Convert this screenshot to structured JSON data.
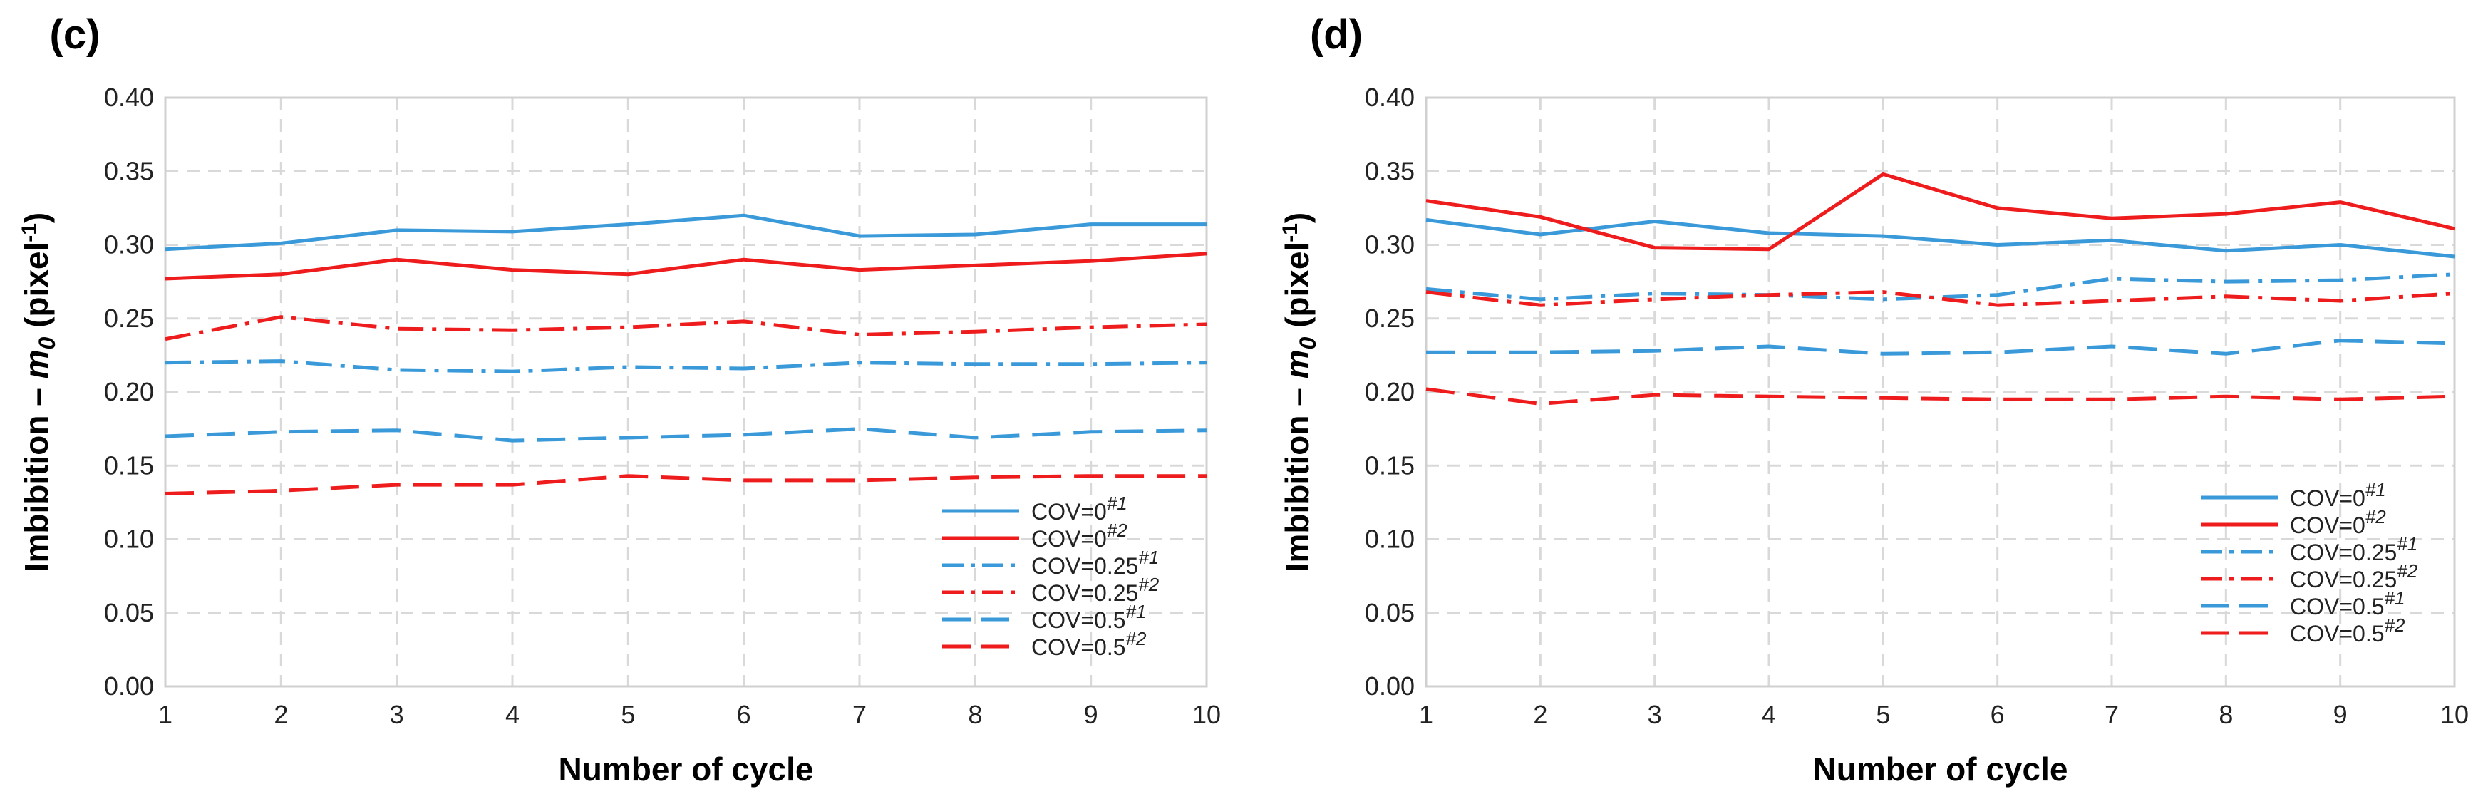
{
  "chart_data": [
    {
      "panel_label": "(c)",
      "type": "line",
      "xlabel": "Number of cycle",
      "ylabel_main": "Imbibition – ",
      "ylabel_m": "m",
      "ylabel_sub": "0",
      "ylabel_unit": " (pixel",
      "ylabel_sup": "-1",
      "ylabel_end": ")",
      "x": [
        1,
        2,
        3,
        4,
        5,
        6,
        7,
        8,
        9,
        10
      ],
      "x_ticks": [
        "1",
        "2",
        "3",
        "4",
        "5",
        "6",
        "7",
        "8",
        "9",
        "10"
      ],
      "y_ticks": [
        "0.00",
        "0.05",
        "0.10",
        "0.15",
        "0.20",
        "0.25",
        "0.30",
        "0.35",
        "0.40"
      ],
      "ylim": [
        0,
        0.4
      ],
      "xlim": [
        1,
        10
      ],
      "grid": true,
      "legend_position": "bottom-right",
      "series": [
        {
          "name": "COV=0",
          "sup": "#1",
          "color": "#3a9ad9",
          "style": "solid",
          "values": [
            0.297,
            0.301,
            0.31,
            0.309,
            0.314,
            0.32,
            0.306,
            0.307,
            0.314,
            0.314
          ]
        },
        {
          "name": "COV=0",
          "sup": "#2",
          "color": "#ee1c1c",
          "style": "solid",
          "values": [
            0.277,
            0.28,
            0.29,
            0.283,
            0.28,
            0.29,
            0.283,
            0.286,
            0.289,
            0.294
          ]
        },
        {
          "name": "COV=0.25",
          "sup": "#1",
          "color": "#3a9ad9",
          "style": "dashdot",
          "values": [
            0.22,
            0.221,
            0.215,
            0.214,
            0.217,
            0.216,
            0.22,
            0.219,
            0.219,
            0.22
          ]
        },
        {
          "name": "COV=0.25",
          "sup": "#2",
          "color": "#ee1c1c",
          "style": "dashdot",
          "values": [
            0.236,
            0.251,
            0.243,
            0.242,
            0.244,
            0.248,
            0.239,
            0.241,
            0.244,
            0.246
          ]
        },
        {
          "name": "COV=0.5",
          "sup": "#1",
          "color": "#3a9ad9",
          "style": "dash",
          "values": [
            0.17,
            0.173,
            0.174,
            0.167,
            0.169,
            0.171,
            0.175,
            0.169,
            0.173,
            0.174
          ]
        },
        {
          "name": "COV=0.5",
          "sup": "#2",
          "color": "#ee1c1c",
          "style": "dash",
          "values": [
            0.131,
            0.133,
            0.137,
            0.137,
            0.143,
            0.14,
            0.14,
            0.142,
            0.143,
            0.143
          ]
        }
      ]
    },
    {
      "panel_label": "(d)",
      "type": "line",
      "xlabel": "Number of cycle",
      "ylabel_main": "Imbibition – ",
      "ylabel_m": "m",
      "ylabel_sub": "0",
      "ylabel_unit": " (pixel",
      "ylabel_sup": "-1",
      "ylabel_end": ")",
      "x": [
        1,
        2,
        3,
        4,
        5,
        6,
        7,
        8,
        9,
        10
      ],
      "x_ticks": [
        "1",
        "2",
        "3",
        "4",
        "5",
        "6",
        "7",
        "8",
        "9",
        "10"
      ],
      "y_ticks": [
        "0.00",
        "0.05",
        "0.10",
        "0.15",
        "0.20",
        "0.25",
        "0.30",
        "0.35",
        "0.40"
      ],
      "ylim": [
        0,
        0.4
      ],
      "xlim": [
        1,
        10
      ],
      "grid": true,
      "legend_position": "bottom-right",
      "series": [
        {
          "name": "COV=0",
          "sup": "#1",
          "color": "#3a9ad9",
          "style": "solid",
          "values": [
            0.317,
            0.307,
            0.316,
            0.308,
            0.306,
            0.3,
            0.303,
            0.296,
            0.3,
            0.292
          ]
        },
        {
          "name": "COV=0",
          "sup": "#2",
          "color": "#ee1c1c",
          "style": "solid",
          "values": [
            0.33,
            0.319,
            0.298,
            0.297,
            0.348,
            0.325,
            0.318,
            0.321,
            0.329,
            0.311
          ]
        },
        {
          "name": "COV=0.25",
          "sup": "#1",
          "color": "#3a9ad9",
          "style": "dashdot",
          "values": [
            0.27,
            0.263,
            0.267,
            0.266,
            0.263,
            0.266,
            0.277,
            0.275,
            0.276,
            0.28
          ]
        },
        {
          "name": "COV=0.25",
          "sup": "#2",
          "color": "#ee1c1c",
          "style": "dashdot",
          "values": [
            0.268,
            0.259,
            0.263,
            0.266,
            0.268,
            0.259,
            0.262,
            0.265,
            0.262,
            0.267
          ]
        },
        {
          "name": "COV=0.5",
          "sup": "#1",
          "color": "#3a9ad9",
          "style": "dash",
          "values": [
            0.227,
            0.227,
            0.228,
            0.231,
            0.226,
            0.227,
            0.231,
            0.226,
            0.235,
            0.233
          ]
        },
        {
          "name": "COV=0.5",
          "sup": "#2",
          "color": "#ee1c1c",
          "style": "dash",
          "values": [
            0.202,
            0.192,
            0.198,
            0.197,
            0.196,
            0.195,
            0.195,
            0.197,
            0.195,
            0.197
          ]
        }
      ]
    }
  ]
}
